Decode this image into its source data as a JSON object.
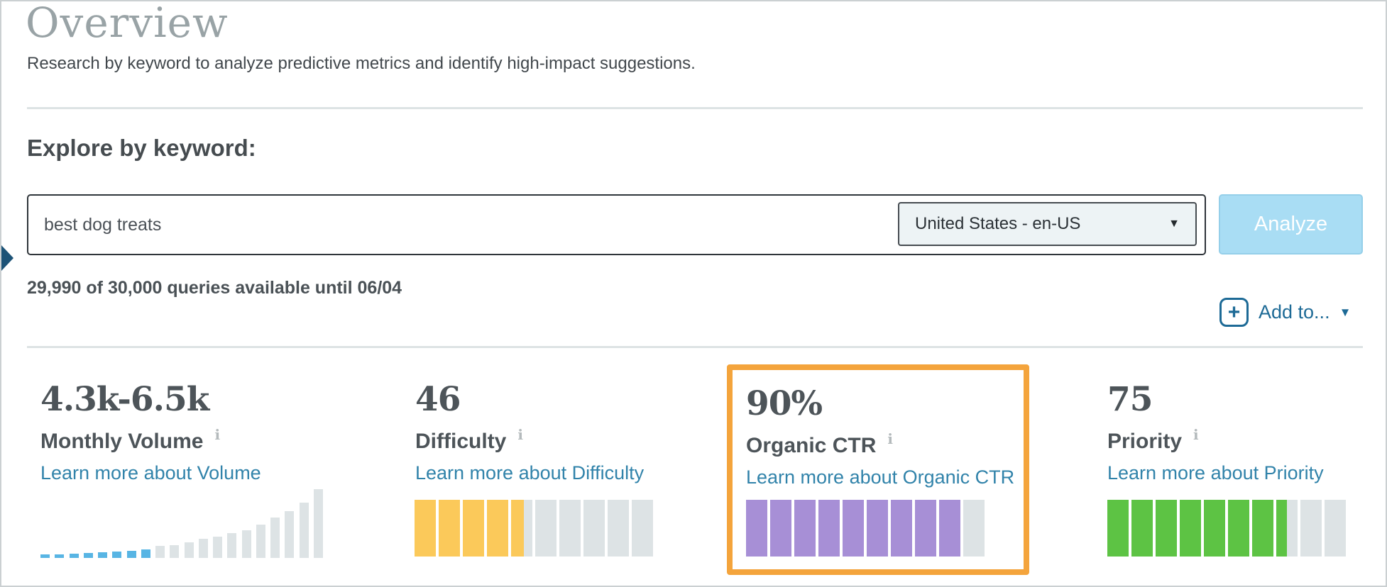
{
  "page": {
    "title": "Overview",
    "subtitle": "Research by keyword to analyze predictive metrics and identify high-impact suggestions."
  },
  "explore": {
    "heading": "Explore by keyword:",
    "keyword_value": "best dog treats",
    "locale_selected": "United States - en-US",
    "analyze_label": "Analyze",
    "quota_text": "29,990 of 30,000 queries available until 06/04",
    "add_to_label": "Add to..."
  },
  "icons": {
    "chevron_down": "▼",
    "plus": "+",
    "info": "i"
  },
  "colors": {
    "analyze_button_bg": "#a9ddf4",
    "link_blue": "#3183aa",
    "add_to_blue": "#1d6a96",
    "highlight_border_orange": "#f4a43c",
    "volume_bar_blue": "#58b5e4",
    "difficulty_yellow": "#fbc95a",
    "organic_ctr_purple": "#a78fd6",
    "priority_green": "#5dc344",
    "empty_bar_gray": "#dde3e5",
    "left_pointer_navy": "#1d5377"
  },
  "metrics": [
    {
      "value": "4.3k-6.5k",
      "label": "Monthly Volume",
      "link": "Learn more about Volume",
      "highlighted": false,
      "bar": {
        "type": "histogram",
        "values": [
          5,
          5,
          6,
          7,
          8,
          9,
          10,
          12,
          17,
          18,
          22,
          27,
          30,
          35,
          39,
          47,
          57,
          66,
          78,
          97
        ],
        "highlight_count": 8,
        "highlight_color": "#58b5e4",
        "base_color": "#dde3e5"
      }
    },
    {
      "value": "46",
      "label": "Difficulty",
      "link": "Learn more about Difficulty",
      "highlighted": false,
      "bar": {
        "type": "segments",
        "total": 10,
        "filled": 4.6,
        "fill_color": "#fbc95a",
        "empty_color": "#dde3e5"
      }
    },
    {
      "value": "90%",
      "label": "Organic CTR",
      "link": "Learn more about Organic CTR",
      "highlighted": true,
      "bar": {
        "type": "segments",
        "total": 10,
        "filled": 9,
        "fill_color": "#a78fd6",
        "empty_color": "#dde3e5"
      }
    },
    {
      "value": "75",
      "label": "Priority",
      "link": "Learn more about Priority",
      "highlighted": false,
      "bar": {
        "type": "segments",
        "total": 10,
        "filled": 7.5,
        "fill_color": "#5dc344",
        "empty_color": "#dde3e5"
      }
    }
  ]
}
